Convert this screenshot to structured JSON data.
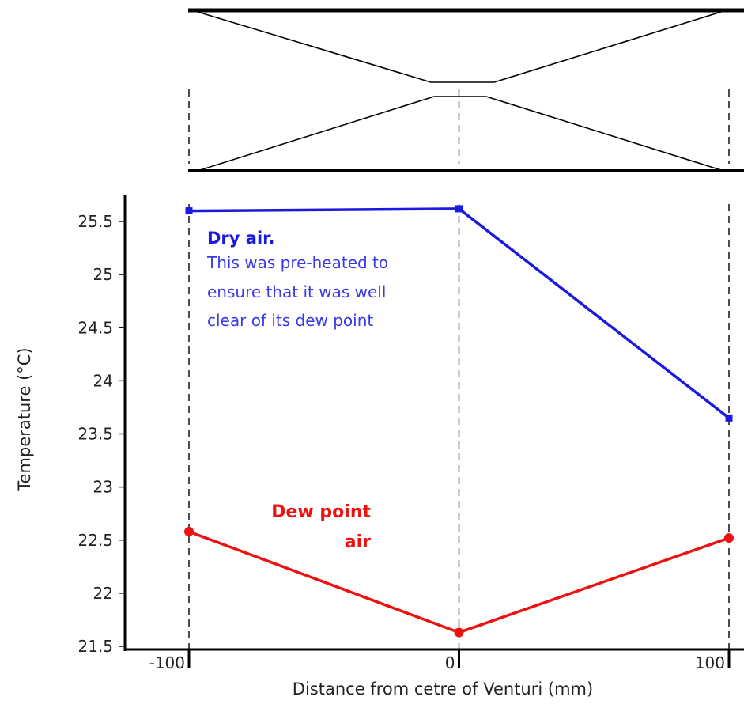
{
  "chart_data": {
    "type": "line",
    "title": "",
    "xlabel": "Distance from cetre of Venturi (mm)",
    "ylabel": "Temperature (°C)",
    "x": [
      -100,
      0,
      100
    ],
    "x_tick_labels": [
      "-100",
      "0",
      "100"
    ],
    "y_ticks": [
      21.5,
      22,
      22.5,
      23,
      23.5,
      24,
      24.5,
      25,
      25.5
    ],
    "y_tick_labels": [
      "21.5",
      "22",
      "22.5",
      "23",
      "23.5",
      "24",
      "24.5",
      "25",
      "25.5"
    ],
    "ylim": [
      21.5,
      25.75
    ],
    "xlim": [
      -100,
      100
    ],
    "grid": false,
    "series": [
      {
        "name": "Dry air.",
        "color": "#1a1adf",
        "marker": "square",
        "values": [
          25.6,
          25.62,
          23.65
        ]
      },
      {
        "name": "Dew point air",
        "color": "#ee1111",
        "marker": "circle",
        "values": [
          22.58,
          21.63,
          22.52
        ]
      }
    ],
    "annotations": {
      "dry_title": "Dry air.",
      "dry_body": [
        "This was pre-heated to",
        "ensure that it was well",
        "clear of its dew point"
      ],
      "dew_lines": [
        "Dew point",
        "air"
      ]
    },
    "venturi_diagram": {
      "shown": true,
      "reference_lines_at_x": [
        -100,
        0,
        100
      ]
    }
  }
}
